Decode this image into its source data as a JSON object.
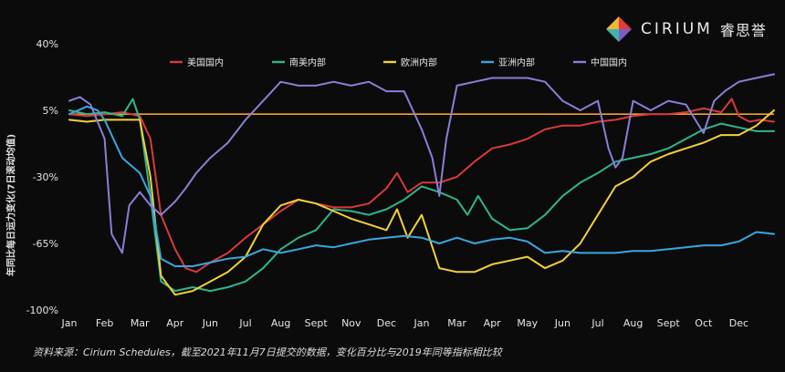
{
  "brand": {
    "name": "CIRIUM",
    "name_cn": "睿思誉"
  },
  "source_note": "资料来源：Cirium Schedules，截至2021年11月7日提交的数据，变化百分比与2019年同等指标相比较",
  "colors": {
    "background": "#0b0b0b",
    "reference_line": "#f0a030",
    "grid": "#3a3a3a"
  },
  "chart_data": {
    "type": "line",
    "title": "",
    "xlabel": "",
    "ylabel": "年同比每日运力变化(7日滚动均值)",
    "ylim": [
      -100,
      40
    ],
    "y_ticks": [
      40,
      5,
      -30,
      -65,
      -100
    ],
    "y_tick_labels": [
      "40%",
      "5%",
      "-30%",
      "-65%",
      "-100%"
    ],
    "x_ticks": [
      0,
      1,
      2,
      3,
      4,
      5,
      6,
      7,
      8,
      9,
      10,
      11,
      12,
      13,
      14,
      15,
      16,
      17,
      18,
      19,
      20
    ],
    "x_tick_labels": [
      "Jan",
      "Feb",
      "Mar",
      "Apr",
      "Jun",
      "Jul",
      "Aug",
      "Sept",
      "Nov",
      "Dec",
      "Jan",
      "Mar",
      "Apr",
      "May",
      "Jun",
      "Jul",
      "Aug",
      "Sept",
      "Oct",
      "Dec",
      ""
    ],
    "xlim": [
      0,
      20
    ],
    "reference_line": 3,
    "grid": false,
    "legend_position": "top",
    "series": [
      {
        "name": "美国国内",
        "color": "#d93a3a",
        "x": [
          0,
          0.5,
          1,
          1.5,
          2,
          2.3,
          2.6,
          3,
          3.3,
          3.6,
          4,
          4.5,
          5,
          5.5,
          6,
          6.5,
          7,
          7.5,
          8,
          8.5,
          9,
          9.3,
          9.6,
          10,
          10.5,
          11,
          11.5,
          12,
          12.5,
          13,
          13.5,
          14,
          14.5,
          15,
          15.5,
          16,
          16.5,
          17,
          17.5,
          18,
          18.5,
          18.8,
          19,
          19.3,
          19.6,
          20
        ],
        "y": [
          3,
          2,
          3,
          4,
          2,
          -10,
          -50,
          -68,
          -78,
          -80,
          -75,
          -70,
          -62,
          -55,
          -48,
          -42,
          -44,
          -46,
          -46,
          -44,
          -36,
          -28,
          -38,
          -33,
          -33,
          -30,
          -22,
          -15,
          -13,
          -10,
          -5,
          -3,
          -3,
          -1,
          0,
          2,
          3,
          3,
          4,
          6,
          4,
          11,
          2,
          -1,
          0,
          -1
        ]
      },
      {
        "name": "南美内部",
        "color": "#2fb58f",
        "x": [
          0,
          0.5,
          1,
          1.5,
          1.8,
          2,
          2.3,
          2.6,
          3,
          3.5,
          4,
          4.5,
          5,
          5.5,
          6,
          6.5,
          7,
          7.5,
          8,
          8.5,
          9,
          9.5,
          10,
          10.5,
          11,
          11.3,
          11.6,
          12,
          12.5,
          13,
          13.5,
          14,
          14.5,
          15,
          15.5,
          16,
          16.5,
          17,
          17.5,
          18,
          18.5,
          19,
          19.5,
          20
        ],
        "y": [
          5,
          3,
          4,
          2,
          11,
          0,
          -40,
          -85,
          -90,
          -88,
          -90,
          -88,
          -85,
          -78,
          -68,
          -62,
          -58,
          -47,
          -48,
          -50,
          -47,
          -42,
          -35,
          -38,
          -42,
          -50,
          -40,
          -52,
          -58,
          -57,
          -50,
          -40,
          -33,
          -28,
          -22,
          -20,
          -18,
          -15,
          -10,
          -5,
          -2,
          -4,
          -6,
          -6
        ]
      },
      {
        "name": "欧洲内部",
        "color": "#f2d03a",
        "x": [
          0,
          0.5,
          1,
          1.5,
          2,
          2.3,
          2.6,
          3,
          3.5,
          4,
          4.5,
          5,
          5.5,
          6,
          6.5,
          7,
          7.5,
          8,
          8.5,
          9,
          9.3,
          9.6,
          10,
          10.5,
          11,
          11.5,
          12,
          12.5,
          13,
          13.5,
          14,
          14.5,
          15,
          15.5,
          16,
          16.5,
          17,
          17.5,
          18,
          18.5,
          19,
          19.5,
          20
        ],
        "y": [
          0,
          -1,
          0,
          0,
          0,
          -30,
          -82,
          -92,
          -90,
          -85,
          -80,
          -72,
          -55,
          -45,
          -42,
          -44,
          -48,
          -52,
          -55,
          -58,
          -47,
          -62,
          -50,
          -78,
          -80,
          -80,
          -76,
          -74,
          -72,
          -78,
          -74,
          -65,
          -50,
          -35,
          -30,
          -22,
          -18,
          -15,
          -12,
          -8,
          -8,
          -3,
          5
        ]
      },
      {
        "name": "亚洲内部",
        "color": "#3aa6e0",
        "x": [
          0,
          0.5,
          0.8,
          1,
          1.5,
          2,
          2.3,
          2.6,
          3,
          3.5,
          4,
          4.5,
          5,
          5.5,
          6,
          6.5,
          7,
          7.5,
          8,
          8.5,
          9,
          9.5,
          10,
          10.5,
          11,
          11.5,
          12,
          12.5,
          13,
          13.5,
          14,
          14.5,
          15,
          15.5,
          16,
          16.5,
          17,
          17.5,
          18,
          18.5,
          19,
          19.5,
          20
        ],
        "y": [
          3,
          7,
          5,
          0,
          -20,
          -28,
          -40,
          -73,
          -77,
          -77,
          -75,
          -73,
          -72,
          -68,
          -70,
          -68,
          -66,
          -67,
          -65,
          -63,
          -62,
          -61,
          -62,
          -65,
          -62,
          -65,
          -63,
          -62,
          -64,
          -70,
          -69,
          -70,
          -70,
          -70,
          -69,
          -69,
          -68,
          -67,
          -66,
          -66,
          -64,
          -59,
          -60
        ]
      },
      {
        "name": "中国国内",
        "color": "#8a7fd6",
        "x": [
          0,
          0.3,
          0.6,
          1,
          1.2,
          1.5,
          1.7,
          2,
          2.3,
          2.6,
          3,
          3.3,
          3.6,
          4,
          4.5,
          5,
          5.5,
          6,
          6.5,
          7,
          7.5,
          8,
          8.5,
          9,
          9.5,
          10,
          10.3,
          10.5,
          10.7,
          11,
          11.5,
          12,
          12.5,
          13,
          13.5,
          14,
          14.5,
          15,
          15.3,
          15.5,
          15.7,
          16,
          16.5,
          17,
          17.5,
          18,
          18.3,
          18.6,
          19,
          19.5,
          20
        ],
        "y": [
          10,
          12,
          8,
          -10,
          -60,
          -70,
          -45,
          -38,
          -45,
          -50,
          -43,
          -36,
          -28,
          -20,
          -12,
          0,
          10,
          20,
          18,
          18,
          20,
          18,
          20,
          15,
          15,
          -5,
          -20,
          -40,
          -10,
          18,
          20,
          22,
          22,
          22,
          20,
          10,
          5,
          10,
          -15,
          -25,
          -20,
          10,
          5,
          10,
          8,
          -7,
          10,
          15,
          20,
          22,
          24
        ]
      }
    ]
  }
}
